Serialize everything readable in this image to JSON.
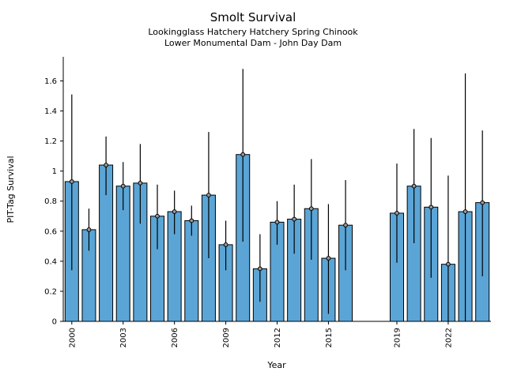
{
  "chart_data": {
    "type": "bar",
    "title": "Smolt Survival",
    "subtitle1": "Lookingglass Hatchery Hatchery Spring Chinook",
    "subtitle2": "Lower Monumental Dam - John Day Dam",
    "xlabel": "Year",
    "ylabel": "PIT-Tag Survival",
    "ylim": [
      0,
      1.76
    ],
    "yticks": [
      0,
      0.2,
      0.4,
      0.6,
      0.8,
      1.0,
      1.2,
      1.4,
      1.6
    ],
    "ytick_labels": [
      "0",
      "0.2",
      "0.4",
      "0.6",
      "0.8",
      "1",
      "1.2",
      "1.4",
      "1.6"
    ],
    "x_range": [
      2000,
      2024
    ],
    "xticks": [
      2000,
      2003,
      2006,
      2009,
      2012,
      2015,
      2019,
      2022
    ],
    "grid": false,
    "legend": "none",
    "bar_color": "#5BA5D6",
    "bar_edge_color": "#000000",
    "errorbar_color": "#000000",
    "marker_fill": "#999999",
    "points": [
      {
        "year": 2000,
        "value": 0.93,
        "lo": 0.34,
        "hi": 1.51
      },
      {
        "year": 2001,
        "value": 0.61,
        "lo": 0.47,
        "hi": 0.75
      },
      {
        "year": 2002,
        "value": 1.04,
        "lo": 0.84,
        "hi": 1.23
      },
      {
        "year": 2003,
        "value": 0.9,
        "lo": 0.74,
        "hi": 1.06
      },
      {
        "year": 2004,
        "value": 0.92,
        "lo": 0.65,
        "hi": 1.18
      },
      {
        "year": 2005,
        "value": 0.7,
        "lo": 0.48,
        "hi": 0.91
      },
      {
        "year": 2006,
        "value": 0.73,
        "lo": 0.58,
        "hi": 0.87
      },
      {
        "year": 2007,
        "value": 0.67,
        "lo": 0.57,
        "hi": 0.77
      },
      {
        "year": 2008,
        "value": 0.84,
        "lo": 0.42,
        "hi": 1.26
      },
      {
        "year": 2009,
        "value": 0.51,
        "lo": 0.34,
        "hi": 0.67
      },
      {
        "year": 2010,
        "value": 1.11,
        "lo": 0.53,
        "hi": 1.68
      },
      {
        "year": 2011,
        "value": 0.35,
        "lo": 0.13,
        "hi": 0.58
      },
      {
        "year": 2012,
        "value": 0.66,
        "lo": 0.51,
        "hi": 0.8
      },
      {
        "year": 2013,
        "value": 0.68,
        "lo": 0.45,
        "hi": 0.91
      },
      {
        "year": 2014,
        "value": 0.75,
        "lo": 0.41,
        "hi": 1.08
      },
      {
        "year": 2015,
        "value": 0.42,
        "lo": 0.05,
        "hi": 0.78
      },
      {
        "year": 2016,
        "value": 0.64,
        "lo": 0.34,
        "hi": 0.94
      },
      {
        "year": 2019,
        "value": 0.72,
        "lo": 0.39,
        "hi": 1.05
      },
      {
        "year": 2020,
        "value": 0.9,
        "lo": 0.52,
        "hi": 1.28
      },
      {
        "year": 2021,
        "value": 0.76,
        "lo": 0.29,
        "hi": 1.22
      },
      {
        "year": 2022,
        "value": 0.38,
        "lo": 0.0,
        "hi": 0.97
      },
      {
        "year": 2023,
        "value": 0.73,
        "lo": 0.0,
        "hi": 1.65
      },
      {
        "year": 2024,
        "value": 0.79,
        "lo": 0.3,
        "hi": 1.27
      }
    ]
  }
}
